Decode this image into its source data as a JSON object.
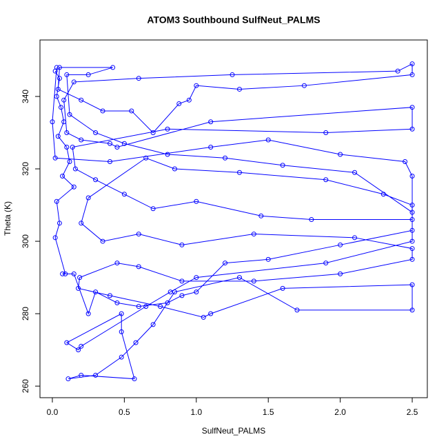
{
  "chart_data": {
    "type": "line",
    "title": "ATOM3 Southbound SulfNeut_PALMS",
    "xlabel": "SulfNeut_PALMS",
    "ylabel": "Theta (K)",
    "xlim": [
      -0.086,
      2.605
    ],
    "ylim": [
      256.8,
      355.6
    ],
    "xticks": [
      {
        "value": 0,
        "label": "0.0"
      },
      {
        "value": 0.5,
        "label": "0.5"
      },
      {
        "value": 1,
        "label": "1.0"
      },
      {
        "value": 1.5,
        "label": "1.5"
      },
      {
        "value": 2,
        "label": "2.0"
      },
      {
        "value": 2.5,
        "label": "2.5"
      }
    ],
    "yticks": [
      260,
      280,
      300,
      320,
      340
    ],
    "grid": false,
    "series": [
      {
        "color": "#0000ff",
        "x": [
          0.02,
          0.05,
          0.03,
          0.06,
          0.08,
          0.04,
          0.1,
          0.12,
          0.07,
          0.15,
          0.03,
          0.05,
          0.02,
          0.09,
          0.07,
          0.15,
          0.25,
          0.3,
          0.45,
          0.6,
          0.8,
          0.9,
          1.0,
          1.2,
          1.5,
          2.0,
          2.5,
          2.5,
          2.1,
          1.6,
          1.2,
          0.8,
          0.5,
          0.3,
          0.12,
          0.1,
          0.25,
          0.42,
          0.05,
          0.04,
          0.2,
          0.35,
          0.55,
          0.7,
          0.88,
          0.95,
          1.0,
          1.3,
          1.75,
          2.5,
          2.5,
          2.4,
          1.25,
          0.6,
          0.15,
          0.08,
          0.1,
          0.2,
          0.4,
          0.45,
          1.1,
          2.5,
          2.5,
          1.9,
          0.8,
          0.14,
          0.16,
          0.3,
          0.5,
          0.7,
          1.0,
          1.45,
          1.8,
          2.5,
          2.5,
          2.3,
          1.9,
          1.3,
          0.85,
          0.65,
          0.25,
          0.2,
          0.35,
          0.6,
          0.9,
          1.4,
          2.1,
          2.5,
          2.5,
          2.0,
          1.4,
          0.9,
          0.6,
          0.45,
          0.19,
          0.18,
          0.4,
          0.75,
          1.05,
          1.1,
          1.6,
          2.5,
          2.5,
          1.7,
          1.3,
          0.85,
          0.7,
          0.58,
          0.48,
          0.3,
          0.11,
          0.2,
          0.57,
          0.48,
          0.48,
          0.1,
          0.18,
          0.2,
          0.65,
          0.82,
          1.0,
          1.9,
          2.5,
          2.5,
          2.45,
          2.0,
          1.5,
          1.1,
          0.4,
          0.02,
          0.0,
          0.03
        ],
        "values": [
          347,
          345,
          340,
          337,
          333,
          329,
          326,
          322,
          318,
          315,
          311,
          305,
          301,
          291,
          291,
          291,
          280,
          286,
          283,
          282,
          283,
          285,
          286,
          294,
          295,
          299,
          303,
          308,
          319,
          321,
          323,
          324,
          327,
          330,
          335,
          346,
          346,
          348,
          348,
          342,
          339,
          336,
          336,
          330,
          338,
          339,
          343,
          342,
          343,
          346,
          349,
          347,
          346,
          345,
          344,
          339,
          330,
          328,
          327,
          326,
          333,
          337,
          331,
          330,
          331,
          326,
          320,
          317,
          313,
          309,
          311,
          307,
          306,
          306,
          310,
          313,
          317,
          319,
          320,
          323,
          312,
          305,
          300,
          302,
          299,
          302,
          301,
          298,
          295,
          291,
          289,
          289,
          293,
          294,
          290,
          287,
          285,
          282,
          279,
          280,
          287,
          288,
          281,
          281,
          290,
          286,
          277,
          272,
          268,
          263,
          262,
          263,
          262,
          275,
          280,
          272,
          270,
          271,
          282,
          286,
          290,
          294,
          300,
          318,
          322,
          324,
          328,
          326,
          322,
          323,
          333,
          348
        ]
      }
    ]
  }
}
